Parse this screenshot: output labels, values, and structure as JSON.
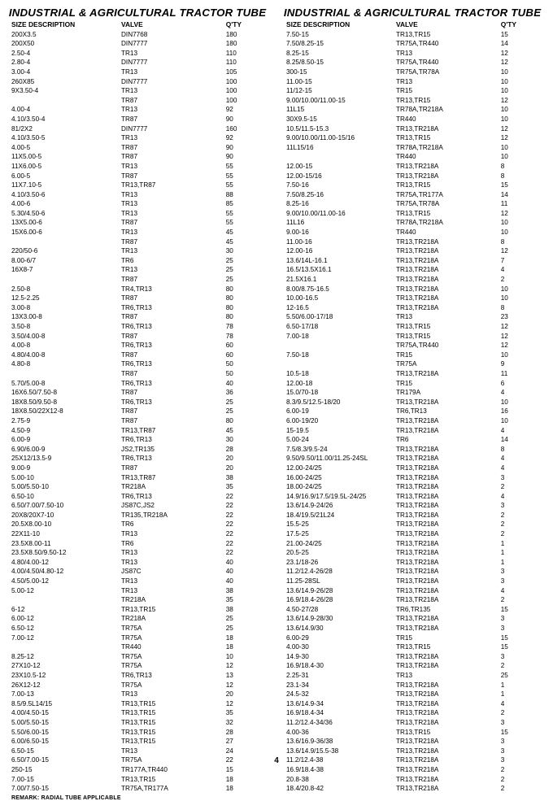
{
  "page_number": "4",
  "remark": "REMARK: RADIAL TUBE APPLICABLE",
  "columns": [
    {
      "heading": "INDUSTRIAL & AGRICULTURAL TRACTOR TUBE",
      "headers": {
        "size": "SIZE DESCRIPTION",
        "valve": "VALVE",
        "qty": "Q'TY"
      },
      "rows": [
        [
          "200X3.5",
          "DIN7768",
          "180"
        ],
        [
          "200X50",
          "DIN7777",
          "180"
        ],
        [
          "2.50-4",
          "TR13",
          "110"
        ],
        [
          "2.80-4",
          "DIN7777",
          "110"
        ],
        [
          "3.00-4",
          "TR13",
          "105"
        ],
        [
          "260X85",
          "DIN7777",
          "100"
        ],
        [
          "9X3.50-4",
          "TR13",
          "100"
        ],
        [
          "",
          "TR87",
          "100"
        ],
        [
          "4.00-4",
          "TR13",
          "92"
        ],
        [
          "4.10/3.50-4",
          "TR87",
          "90"
        ],
        [
          "81/2X2",
          "DIN7777",
          "160"
        ],
        [
          "4.10/3.50-5",
          "TR13",
          "92"
        ],
        [
          "4.00-5",
          "TR87",
          "90"
        ],
        [
          "11X5.00-5",
          "TR87",
          "90"
        ],
        [
          "11X6.00-5",
          "TR13",
          "55"
        ],
        [
          "6.00-5",
          "TR87",
          "55"
        ],
        [
          "11X7.10-5",
          "TR13,TR87",
          "55"
        ],
        [
          "4.10/3.50-6",
          "TR13",
          "88"
        ],
        [
          "4.00-6",
          "TR13",
          "85"
        ],
        [
          "5.30/4.50-6",
          "TR13",
          "55"
        ],
        [
          "13X5.00-6",
          "TR87",
          "55"
        ],
        [
          "15X6.00-6",
          "TR13",
          "45"
        ],
        [
          "",
          "TR87",
          "45"
        ],
        [
          "220/50-6",
          "TR13",
          "30"
        ],
        [
          "8.00-6/7",
          "TR6",
          "25"
        ],
        [
          "16X8-7",
          "TR13",
          "25"
        ],
        [
          "",
          "TR87",
          "25"
        ],
        [
          "2.50-8",
          "TR4,TR13",
          "80"
        ],
        [
          "12.5-2.25",
          "TR87",
          "80"
        ],
        [
          "3.00-8",
          "TR6,TR13",
          "80"
        ],
        [
          "13X3.00-8",
          "TR87",
          "80"
        ],
        [
          "3.50-8",
          "TR6,TR13",
          "78"
        ],
        [
          "3.50/4.00-8",
          "TR87",
          "78"
        ],
        [
          "4.00-8",
          "TR6,TR13",
          "60"
        ],
        [
          "4.80/4.00-8",
          "TR87",
          "60"
        ],
        [
          "4.80-8",
          "TR6,TR13",
          "50"
        ],
        [
          "",
          "TR87",
          "50"
        ],
        [
          "5.70/5.00-8",
          "TR6,TR13",
          "40"
        ],
        [
          "16X6.50/7.50-8",
          "TR87",
          "36"
        ],
        [
          "18X8.50/9.50-8",
          "TR6,TR13",
          "25"
        ],
        [
          "18X8.50/22X12-8",
          "TR87",
          "25"
        ],
        [
          "2.75-9",
          "TR87",
          "80"
        ],
        [
          "4.50-9",
          "TR13,TR87",
          "45"
        ],
        [
          "6.00-9",
          "TR6,TR13",
          "30"
        ],
        [
          "6.90/6.00-9",
          "JS2,TR135",
          "28"
        ],
        [
          "25X12/13.5-9",
          "TR6,TR13",
          "20"
        ],
        [
          "9.00-9",
          "TR87",
          "20"
        ],
        [
          "5.00-10",
          "TR13,TR87",
          "38"
        ],
        [
          "5.00/5.50-10",
          "TR218A",
          "35"
        ],
        [
          "6.50-10",
          "TR6,TR13",
          "22"
        ],
        [
          "6.50/7.00/7.50-10",
          "JS87C,JS2",
          "22"
        ],
        [
          "20X8/20X7-10",
          "TR135,TR218A",
          "22"
        ],
        [
          "20.5X8.00-10",
          "TR6",
          "22"
        ],
        [
          "22X11-10",
          "TR13",
          "22"
        ],
        [
          "23.5X8.00-11",
          "TR6",
          "22"
        ],
        [
          "23.5X8.50/9.50-12",
          "TR13",
          "22"
        ],
        [
          "4.80/4.00-12",
          "TR13",
          "40"
        ],
        [
          "4.00/4.50/4.80-12",
          "JS87C",
          "40"
        ],
        [
          "4.50/5.00-12",
          "TR13",
          "40"
        ],
        [
          "5.00-12",
          "TR13",
          "38"
        ],
        [
          "",
          "TR218A",
          "35"
        ],
        [
          "6-12",
          "TR13,TR15",
          "38"
        ],
        [
          "6.00-12",
          "TR218A",
          "25"
        ],
        [
          "6.50-12",
          "TR75A",
          "25"
        ],
        [
          "7.00-12",
          "TR75A",
          "18"
        ],
        [
          "",
          "TR440",
          "18"
        ],
        [
          "8.25-12",
          "TR75A",
          "10"
        ],
        [
          "27X10-12",
          "TR75A",
          "12"
        ],
        [
          "23X10.5-12",
          "TR6,TR13",
          "13"
        ],
        [
          "26X12-12",
          "TR75A",
          "12"
        ],
        [
          "7.00-13",
          "TR13",
          "20"
        ],
        [
          "8.5/9.5L14/15",
          "TR13,TR15",
          "12"
        ],
        [
          "4.00/4.50-15",
          "TR13,TR15",
          "35"
        ],
        [
          "5.00/5.50-15",
          "TR13,TR15",
          "32"
        ],
        [
          "5.50/6.00-15",
          "TR13,TR15",
          "28"
        ],
        [
          "6.00/6.50-15",
          "TR13,TR15",
          "27"
        ],
        [
          "6.50-15",
          "TR13",
          "24"
        ],
        [
          "6.50/7.00-15",
          "TR75A",
          "22"
        ],
        [
          "250-15",
          "TR177A,TR440",
          "15"
        ],
        [
          "7.00-15",
          "TR13,TR15",
          "18"
        ],
        [
          "7.00/7.50-15",
          "TR75A,TR177A",
          "18"
        ]
      ]
    },
    {
      "heading": "INDUSTRIAL & AGRICULTURAL TRACTOR TUBE",
      "headers": {
        "size": "SIZE DESCRIPTION",
        "valve": "VALVE",
        "qty": "Q'TY"
      },
      "rows": [
        [
          "7.50-15",
          "TR13,TR15",
          "15"
        ],
        [
          "7.50/8.25-15",
          "TR75A,TR440",
          "14"
        ],
        [
          "8.25-15",
          "TR13",
          "12"
        ],
        [
          "8.25/8.50-15",
          "TR75A,TR440",
          "12"
        ],
        [
          "300-15",
          "TR75A,TR78A",
          "10"
        ],
        [
          "11.00-15",
          "TR13",
          "10"
        ],
        [
          "11/12-15",
          "TR15",
          "10"
        ],
        [
          "9.00/10.00/11.00-15",
          "TR13,TR15",
          "12"
        ],
        [
          "11L15",
          "TR78A,TR218A",
          "10"
        ],
        [
          "30X9.5-15",
          "TR440",
          "10"
        ],
        [
          "10.5/11.5-15.3",
          "TR13,TR218A",
          "12"
        ],
        [
          "9.00/10.00/11.00-15/16",
          "TR13,TR15",
          "12"
        ],
        [
          "11L15/16",
          "TR78A,TR218A",
          "10"
        ],
        [
          "",
          "TR440",
          "10"
        ],
        [
          "12.00-15",
          "TR13,TR218A",
          "8"
        ],
        [
          "12.00-15/16",
          "TR13,TR218A",
          "8"
        ],
        [
          "7.50-16",
          "TR13,TR15",
          "15"
        ],
        [
          "7.50/8.25-16",
          "TR75A,TR177A",
          "14"
        ],
        [
          "8.25-16",
          "TR75A,TR78A",
          "11"
        ],
        [
          "9.00/10.00/11.00-16",
          "TR13,TR15",
          "12"
        ],
        [
          "11L16",
          "TR78A,TR218A",
          "10"
        ],
        [
          "9.00-16",
          "TR440",
          "10"
        ],
        [
          "11.00-16",
          "TR13,TR218A",
          "8"
        ],
        [
          "12.00-16",
          "TR13,TR218A",
          "12"
        ],
        [
          "13.6/14L-16.1",
          "TR13,TR218A",
          "7"
        ],
        [
          "16.5/13.5X16.1",
          "TR13,TR218A",
          "4"
        ],
        [
          "21.5X16.1",
          "TR13,TR218A",
          "2"
        ],
        [
          "8.00/8.75-16.5",
          "TR13,TR218A",
          "10"
        ],
        [
          "10.00-16.5",
          "TR13,TR218A",
          "10"
        ],
        [
          "12-16.5",
          "TR13,TR218A",
          "8"
        ],
        [
          "5.50/6.00-17/18",
          "TR13",
          "23"
        ],
        [
          "6.50-17/18",
          "TR13,TR15",
          "12"
        ],
        [
          "7.00-18",
          "TR13,TR15",
          "12"
        ],
        [
          "",
          "TR75A,TR440",
          "12"
        ],
        [
          "7.50-18",
          "TR15",
          "10"
        ],
        [
          "",
          "TR75A",
          "9"
        ],
        [
          "10.5-18",
          "TR13,TR218A",
          "11"
        ],
        [
          "12.00-18",
          "TR15",
          "6"
        ],
        [
          "15.0/70-18",
          "TR179A",
          "4"
        ],
        [
          "8.3/9.5/12.5-18/20",
          "TR13,TR218A",
          "10"
        ],
        [
          "6.00-19",
          "TR6,TR13",
          "16"
        ],
        [
          "6.00-19/20",
          "TR13,TR218A",
          "10"
        ],
        [
          "15-19.5",
          "TR13,TR218A",
          "4"
        ],
        [
          "5.00-24",
          "TR6",
          "14"
        ],
        [
          "7.5/8.3/9.5-24",
          "TR13,TR218A",
          "8"
        ],
        [
          "9.50/9.50/11.00/11.25-24SL",
          "TR13,TR218A",
          "4"
        ],
        [
          "12.00-24/25",
          "TR13,TR218A",
          "4"
        ],
        [
          "16.00-24/25",
          "TR13,TR218A",
          "3"
        ],
        [
          "18.00-24/25",
          "TR13,TR218A",
          "2"
        ],
        [
          "14.9/16.9/17.5/19.5L-24/25",
          "TR13,TR218A",
          "4"
        ],
        [
          "13.6/14.9-24/26",
          "TR13,TR218A",
          "3"
        ],
        [
          "18.4/19.5/21L24",
          "TR13,TR218A",
          "2"
        ],
        [
          "15.5-25",
          "TR13,TR218A",
          "2"
        ],
        [
          "17.5-25",
          "TR13,TR218A",
          "2"
        ],
        [
          "21.00-24/25",
          "TR13,TR218A",
          "1"
        ],
        [
          "20.5-25",
          "TR13,TR218A",
          "1"
        ],
        [
          "23.1/18-26",
          "TR13,TR218A",
          "1"
        ],
        [
          "11.2/12.4-26/28",
          "TR13,TR218A",
          "3"
        ],
        [
          "11.25-28SL",
          "TR13,TR218A",
          "3"
        ],
        [
          "13.6/14.9-26/28",
          "TR13,TR218A",
          "4"
        ],
        [
          "16.9/18.4-26/28",
          "TR13,TR218A",
          "2"
        ],
        [
          "4.50-27/28",
          "TR6,TR135",
          "15"
        ],
        [
          "13.6/14.9-28/30",
          "TR13,TR218A",
          "3"
        ],
        [
          "13.6/14.9/30",
          "TR13,TR218A",
          "3"
        ],
        [
          "6.00-29",
          "TR15",
          "15"
        ],
        [
          "4.00-30",
          "TR13,TR15",
          "15"
        ],
        [
          "14.9-30",
          "TR13,TR218A",
          "3"
        ],
        [
          "16.9/18.4-30",
          "TR13,TR218A",
          "2"
        ],
        [
          "2.25-31",
          "TR13",
          "25"
        ],
        [
          "23.1-34",
          "TR13,TR218A",
          "1"
        ],
        [
          "24.5-32",
          "TR13,TR218A",
          "1"
        ],
        [
          "13.6/14.9-34",
          "TR13,TR218A",
          "4"
        ],
        [
          "16.9/18.4-34",
          "TR13,TR218A",
          "2"
        ],
        [
          "11.2/12.4-34/36",
          "TR13,TR218A",
          "3"
        ],
        [
          "4.00-36",
          "TR13,TR15",
          "15"
        ],
        [
          "13.6/16.9-36/38",
          "TR13,TR218A",
          "3"
        ],
        [
          "13.6/14.9/15.5-38",
          "TR13,TR218A",
          "3"
        ],
        [
          "11.2/12.4-38",
          "TR13,TR218A",
          "3"
        ],
        [
          "16.9/18.4-38",
          "TR13,TR218A",
          "2"
        ],
        [
          "20.8-38",
          "TR13,TR218A",
          "2"
        ],
        [
          "18.4/20.8-42",
          "TR13,TR218A",
          "2"
        ]
      ]
    }
  ]
}
